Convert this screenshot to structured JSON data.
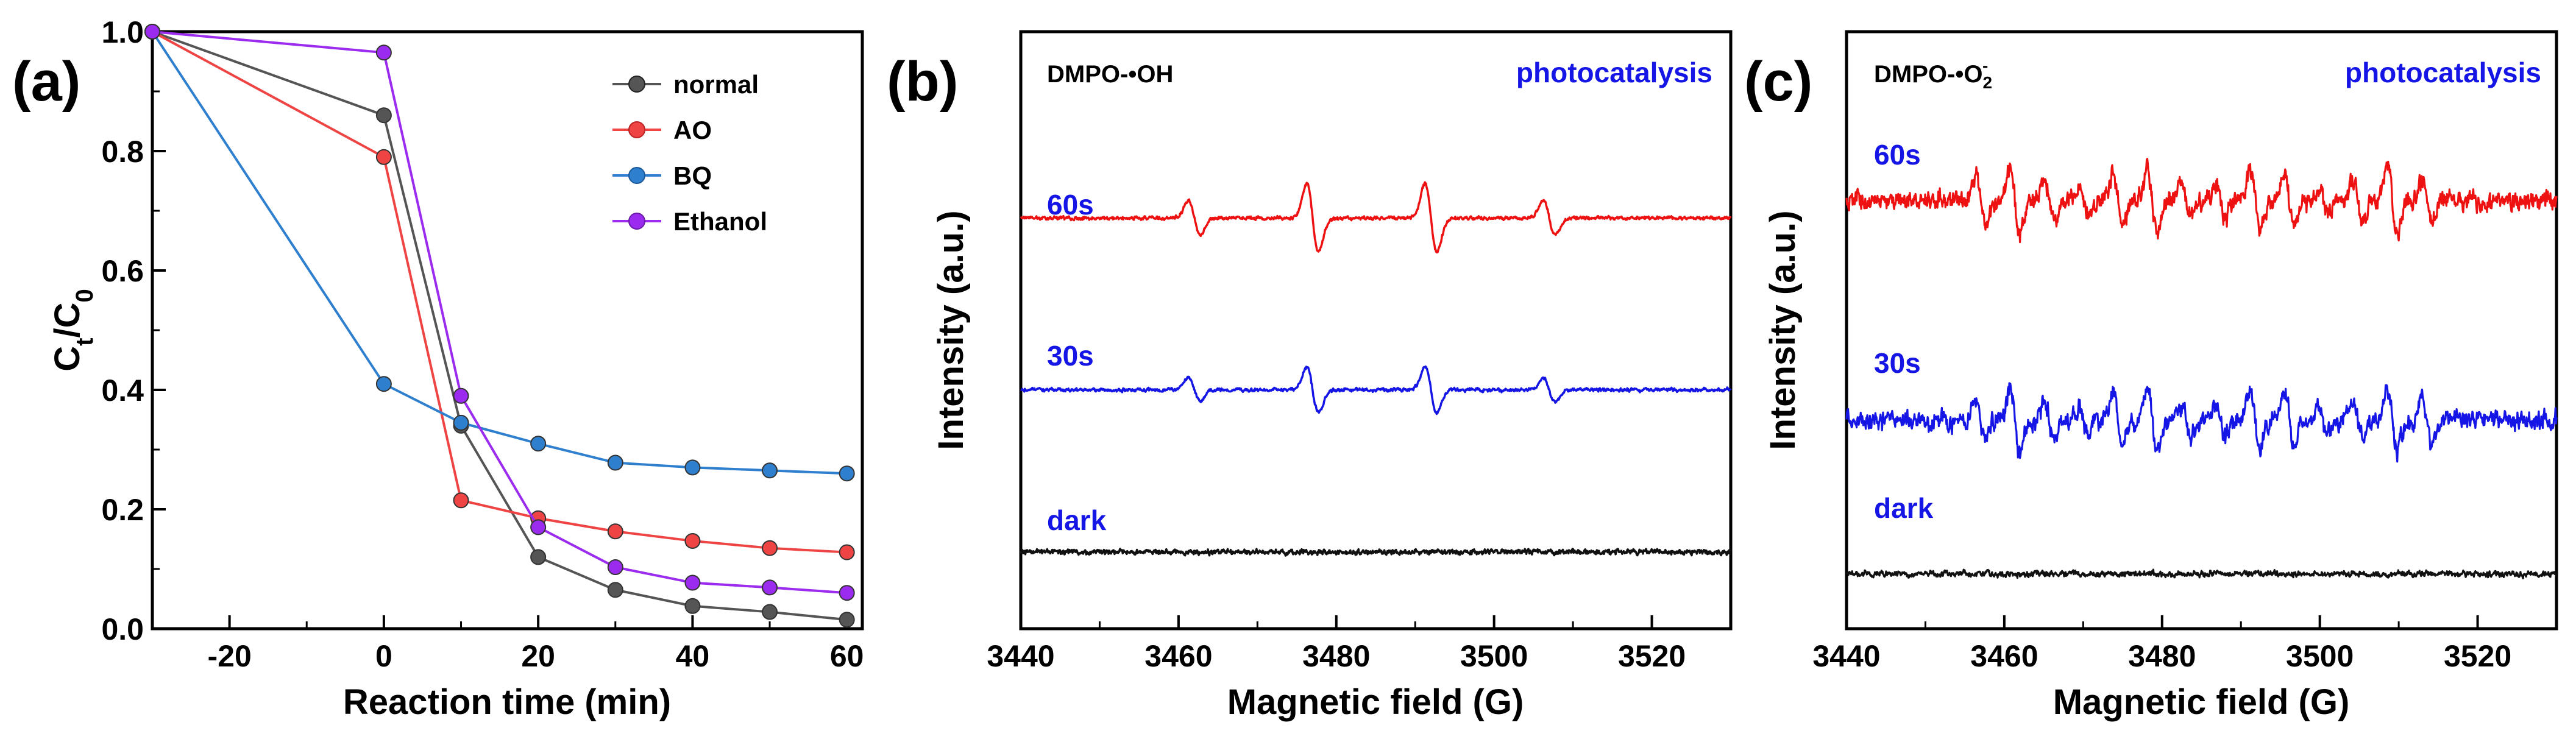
{
  "chart_data": [
    {
      "panel": "(a)",
      "type": "line",
      "xlabel": "Reaction time (min)",
      "ylabel_main": "C",
      "ylabel_sub1": "t",
      "ylabel_mid": "/C",
      "ylabel_sub2": "0",
      "xlim": [
        -30,
        62
      ],
      "ylim": [
        0,
        1.0
      ],
      "xticks": [
        -20,
        0,
        20,
        40,
        60
      ],
      "yticks": [
        0.0,
        0.2,
        0.4,
        0.6,
        0.8,
        1.0
      ],
      "legend_position": "top-right",
      "x": [
        -30,
        0,
        10,
        20,
        30,
        40,
        50,
        60
      ],
      "series": [
        {
          "name": "normal",
          "color": "#555555",
          "values": [
            1.0,
            0.86,
            0.34,
            0.12,
            0.065,
            0.038,
            0.028,
            0.015
          ]
        },
        {
          "name": "AO",
          "color": "#ee4444",
          "values": [
            1.0,
            0.79,
            0.215,
            0.185,
            0.163,
            0.147,
            0.135,
            0.128
          ]
        },
        {
          "name": "BQ",
          "color": "#2f7fcf",
          "values": [
            1.0,
            0.41,
            0.345,
            0.31,
            0.278,
            0.27,
            0.265,
            0.26
          ]
        },
        {
          "name": "Ethanol",
          "color": "#9b2bee",
          "values": [
            1.0,
            0.965,
            0.39,
            0.17,
            0.103,
            0.077,
            0.069,
            0.06
          ]
        }
      ]
    },
    {
      "panel": "(b)",
      "type": "line",
      "xlabel": "Magnetic field (G)",
      "ylabel": "Intensity (a.u.)",
      "probe": "DMPO-•OH",
      "mode": "photocatalysis",
      "xlim": [
        3440,
        3530
      ],
      "xticks": [
        3440,
        3460,
        3480,
        3500,
        3520
      ],
      "signal": "four-line EPR pattern, 1:2:2:1 intensity ratio",
      "peak_centers": [
        3462,
        3477,
        3492,
        3507
      ],
      "series": [
        {
          "name": "60s",
          "color": "#ee1111",
          "relative_amplitude": 1.0
        },
        {
          "name": "30s",
          "color": "#1515e6",
          "relative_amplitude": 0.6
        },
        {
          "name": "dark",
          "color": "#111111",
          "relative_amplitude": 0.0
        }
      ]
    },
    {
      "panel": "(c)",
      "type": "line",
      "xlabel": "Magnetic field (G)",
      "ylabel": "Intensity (a.u.)",
      "probe_main": "DMPO-•O",
      "probe_sub": "2",
      "probe_sup": "-",
      "mode": "photocatalysis",
      "xlim": [
        3440,
        3530
      ],
      "xticks": [
        3440,
        3460,
        3480,
        3500,
        3520
      ],
      "signal": "multi-line EPR pattern between about 3456 and 3518 G",
      "series": [
        {
          "name": "60s",
          "color": "#ee1111",
          "relative_amplitude": 1.0
        },
        {
          "name": "30s",
          "color": "#1515e6",
          "relative_amplitude": 0.85
        },
        {
          "name": "dark",
          "color": "#111111",
          "relative_amplitude": 0.0
        }
      ]
    }
  ]
}
